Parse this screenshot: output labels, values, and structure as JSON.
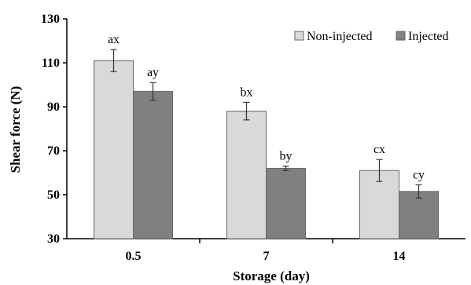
{
  "chart_data": {
    "type": "bar",
    "xlabel": "Storage (day)",
    "ylabel": "Shear force (N)",
    "ylim": [
      30,
      130
    ],
    "yticks": [
      30,
      50,
      70,
      90,
      110,
      130
    ],
    "categories": [
      "0.5",
      "7",
      "14"
    ],
    "legend_position": "top-right",
    "grid": false,
    "series": [
      {
        "name": "Non-injected",
        "color": "#d9d9d9",
        "values": [
          111,
          88,
          61
        ],
        "errors": [
          5,
          4,
          5
        ],
        "labels": [
          "ax",
          "bx",
          "cx"
        ]
      },
      {
        "name": "Injected",
        "color": "#808080",
        "values": [
          97,
          62,
          51.5
        ],
        "errors": [
          4,
          1,
          3
        ],
        "labels": [
          "ay",
          "by",
          "cy"
        ]
      }
    ]
  }
}
